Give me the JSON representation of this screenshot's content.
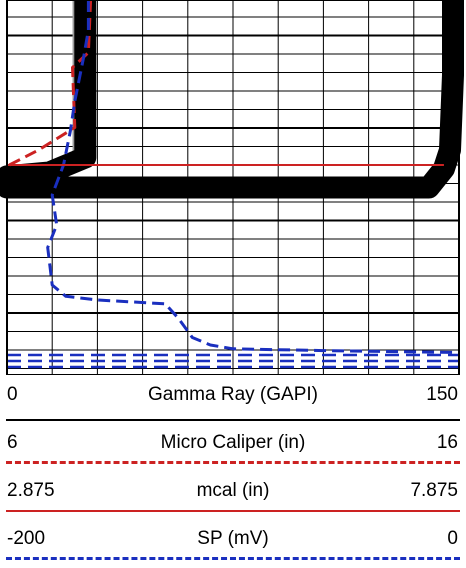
{
  "chart_data": {
    "type": "line",
    "title": "",
    "grid": true,
    "tracks": [
      {
        "name": "Gamma Ray (GAPI)",
        "scale_min": "0",
        "scale_max": "150",
        "xlim": [
          0,
          150
        ],
        "color": "#000000",
        "style": "solid"
      },
      {
        "name": "Micro Caliper (in)",
        "scale_min": "6",
        "scale_max": "16",
        "xlim": [
          6,
          16
        ],
        "color": "#cc2222",
        "style": "dashed"
      },
      {
        "name": "mcal (in)",
        "scale_min": "2.875",
        "scale_max": "7.875",
        "xlim": [
          2.875,
          7.875
        ],
        "color": "#cc2222",
        "style": "solid"
      },
      {
        "name": "SP (mV)",
        "scale_min": "-200",
        "scale_max": "0",
        "xlim": [
          -200,
          0
        ],
        "color": "#1a2fbf",
        "style": "dashed"
      }
    ],
    "series": [
      {
        "name": "Gamma Ray (GAPI)",
        "x": [
          26,
          26,
          26,
          14,
          0,
          0,
          140,
          145,
          147,
          148,
          148
        ],
        "y": [
          0.0,
          0.25,
          0.42,
          0.46,
          0.47,
          0.5,
          0.5,
          0.45,
          0.4,
          0.2,
          0.0
        ]
      },
      {
        "name": "Micro Caliper (in)",
        "x": [
          7.85,
          7.8,
          7.45,
          7.5,
          6.7,
          6.05
        ],
        "y": [
          0.0,
          0.14,
          0.18,
          0.34,
          0.4,
          0.44
        ]
      },
      {
        "name": "SP (mV)",
        "x": [
          -164,
          -164,
          -166,
          -170,
          -172,
          -175,
          -180,
          -178,
          -182,
          -180,
          -174,
          -160,
          -130,
          -124,
          -118,
          -110,
          -100,
          -60,
          0
        ],
        "y": [
          0.0,
          0.08,
          0.15,
          0.27,
          0.35,
          0.44,
          0.52,
          0.6,
          0.66,
          0.76,
          0.79,
          0.8,
          0.81,
          0.85,
          0.9,
          0.92,
          0.93,
          0.935,
          0.94
        ]
      }
    ]
  }
}
